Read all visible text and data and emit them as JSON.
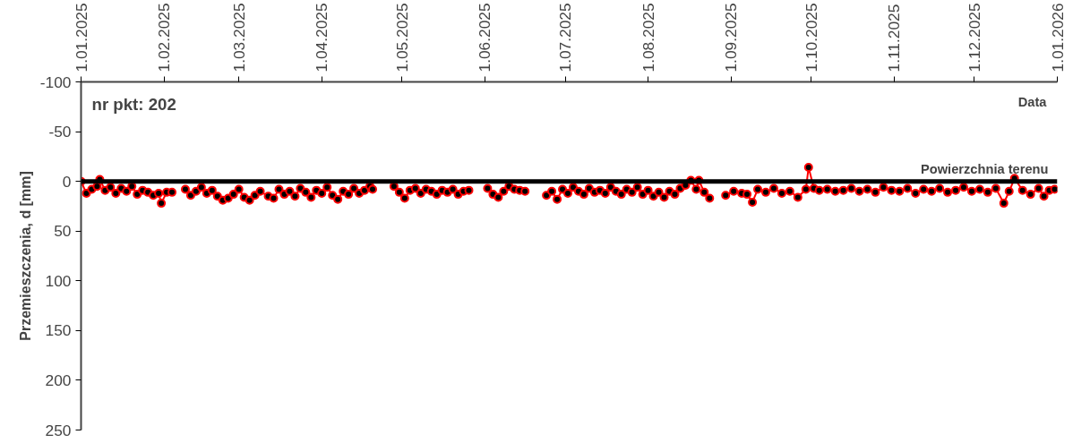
{
  "chart_data": {
    "type": "line",
    "xlabel": "Data",
    "ylabel": "Przemieszczenia, d [mm]",
    "annotations": [
      "nr pkt: 202"
    ],
    "xlim": [
      "2025-01-01",
      "2026-01-01"
    ],
    "xticks": [
      {
        "value": "2025-01-01",
        "label": "1.01.2025"
      },
      {
        "value": "2025-02-01",
        "label": "1.02.2025"
      },
      {
        "value": "2025-03-01",
        "label": "1.03.2025"
      },
      {
        "value": "2025-04-01",
        "label": "1.04.2025"
      },
      {
        "value": "2025-05-01",
        "label": "1.05.2025"
      },
      {
        "value": "2025-06-01",
        "label": "1.06.2025"
      },
      {
        "value": "2025-07-01",
        "label": "1.07.2025"
      },
      {
        "value": "2025-08-01",
        "label": "1.08.2025"
      },
      {
        "value": "2025-09-01",
        "label": "1.09.2025"
      },
      {
        "value": "2025-10-01",
        "label": "1.10.2025"
      },
      {
        "value": "2025-11-01",
        "label": "1.11.2025"
      },
      {
        "value": "2025-12-01",
        "label": "1.12.2025"
      },
      {
        "value": "2026-01-01",
        "label": "1.01.2026"
      }
    ],
    "ylim": [
      250,
      -100
    ],
    "yticks": [
      -100,
      -50,
      0,
      50,
      100,
      150,
      200,
      250
    ],
    "marker": "circle",
    "line_style": "solid",
    "ref_lines": [
      {
        "axis": "y",
        "value": 0,
        "label": "Powierzchnia terenu",
        "color": "#000000"
      }
    ],
    "x": [
      "2025-01-01",
      "2025-01-03",
      "2025-01-05",
      "2025-01-07",
      "2025-01-08",
      "2025-01-10",
      "2025-01-12",
      "2025-01-14",
      "2025-01-16",
      "2025-01-18",
      "2025-01-20",
      "2025-01-22",
      "2025-01-24",
      "2025-01-26",
      "2025-01-28",
      "2025-01-30",
      "2025-01-31",
      "2025-02-02",
      "2025-02-04",
      "2025-02-07",
      "2025-02-09",
      "2025-02-11",
      "2025-02-13",
      "2025-02-15",
      "2025-02-17",
      "2025-02-19",
      "2025-02-21",
      "2025-02-23",
      "2025-02-25",
      "2025-02-27",
      "2025-03-01",
      "2025-03-03",
      "2025-03-05",
      "2025-03-07",
      "2025-03-09",
      "2025-03-12",
      "2025-03-14",
      "2025-03-16",
      "2025-03-18",
      "2025-03-20",
      "2025-03-22",
      "2025-03-24",
      "2025-03-26",
      "2025-03-28",
      "2025-03-30",
      "2025-04-01",
      "2025-04-03",
      "2025-04-05",
      "2025-04-07",
      "2025-04-09",
      "2025-04-11",
      "2025-04-13",
      "2025-04-15",
      "2025-04-17",
      "2025-04-19",
      "2025-04-20",
      "2025-04-24",
      "2025-04-28",
      "2025-04-30",
      "2025-05-02",
      "2025-05-04",
      "2025-05-06",
      "2025-05-08",
      "2025-05-10",
      "2025-05-12",
      "2025-05-14",
      "2025-05-16",
      "2025-05-18",
      "2025-05-20",
      "2025-05-22",
      "2025-05-24",
      "2025-05-26",
      "2025-05-29",
      "2025-06-02",
      "2025-06-04",
      "2025-06-06",
      "2025-06-08",
      "2025-06-10",
      "2025-06-12",
      "2025-06-14",
      "2025-06-16",
      "2025-06-20",
      "2025-06-24",
      "2025-06-26",
      "2025-06-28",
      "2025-06-30",
      "2025-07-02",
      "2025-07-04",
      "2025-07-06",
      "2025-07-08",
      "2025-07-10",
      "2025-07-12",
      "2025-07-14",
      "2025-07-16",
      "2025-07-18",
      "2025-07-20",
      "2025-07-22",
      "2025-07-24",
      "2025-07-26",
      "2025-07-28",
      "2025-07-30",
      "2025-08-01",
      "2025-08-03",
      "2025-08-05",
      "2025-08-07",
      "2025-08-09",
      "2025-08-11",
      "2025-08-13",
      "2025-08-15",
      "2025-08-17",
      "2025-08-19",
      "2025-08-20",
      "2025-08-22",
      "2025-08-24",
      "2025-08-27",
      "2025-08-30",
      "2025-09-02",
      "2025-09-05",
      "2025-09-07",
      "2025-09-09",
      "2025-09-11",
      "2025-09-14",
      "2025-09-17",
      "2025-09-20",
      "2025-09-23",
      "2025-09-26",
      "2025-09-29",
      "2025-09-30",
      "2025-10-02",
      "2025-10-04",
      "2025-10-07",
      "2025-10-10",
      "2025-10-13",
      "2025-10-16",
      "2025-10-19",
      "2025-10-22",
      "2025-10-25",
      "2025-10-28",
      "2025-10-31",
      "2025-11-03",
      "2025-11-06",
      "2025-11-09",
      "2025-11-12",
      "2025-11-15",
      "2025-11-18",
      "2025-11-21",
      "2025-11-24",
      "2025-11-27",
      "2025-11-30",
      "2025-12-03",
      "2025-12-06",
      "2025-12-09",
      "2025-12-12",
      "2025-12-14",
      "2025-12-16",
      "2025-12-19",
      "2025-12-22",
      "2025-12-25",
      "2025-12-27",
      "2025-12-29",
      "2025-12-31"
    ],
    "series": [
      {
        "color": "#ff0000",
        "values": [
          0,
          12,
          8,
          5,
          -2,
          9,
          6,
          12,
          7,
          10,
          5,
          13,
          9,
          11,
          14,
          12,
          22,
          11,
          11,
          null,
          8,
          14,
          10,
          6,
          12,
          9,
          15,
          19,
          17,
          13,
          8,
          16,
          19,
          14,
          10,
          15,
          17,
          8,
          13,
          10,
          15,
          7,
          11,
          16,
          9,
          12,
          6,
          14,
          18,
          10,
          13,
          7,
          12,
          9,
          5,
          8,
          null,
          5,
          11,
          17,
          9,
          7,
          12,
          8,
          10,
          13,
          9,
          11,
          8,
          13,
          10,
          9,
          null,
          7,
          13,
          16,
          10,
          5,
          8,
          9,
          10,
          null,
          14,
          10,
          18,
          8,
          12,
          6,
          10,
          13,
          7,
          11,
          9,
          12,
          6,
          10,
          13,
          8,
          11,
          6,
          13,
          9,
          15,
          11,
          16,
          10,
          13,
          7,
          4,
          -1,
          8,
          -1,
          11,
          17,
          null,
          14,
          10,
          12,
          13,
          21,
          8,
          11,
          7,
          12,
          10,
          16,
          8,
          -14,
          7,
          9,
          8,
          10,
          9,
          7,
          10,
          8,
          11,
          6,
          9,
          10,
          7,
          12,
          8,
          10,
          7,
          11,
          9,
          6,
          10,
          8,
          11,
          7,
          22,
          10,
          -3,
          9,
          13,
          7,
          15,
          9,
          8
        ]
      }
    ]
  }
}
